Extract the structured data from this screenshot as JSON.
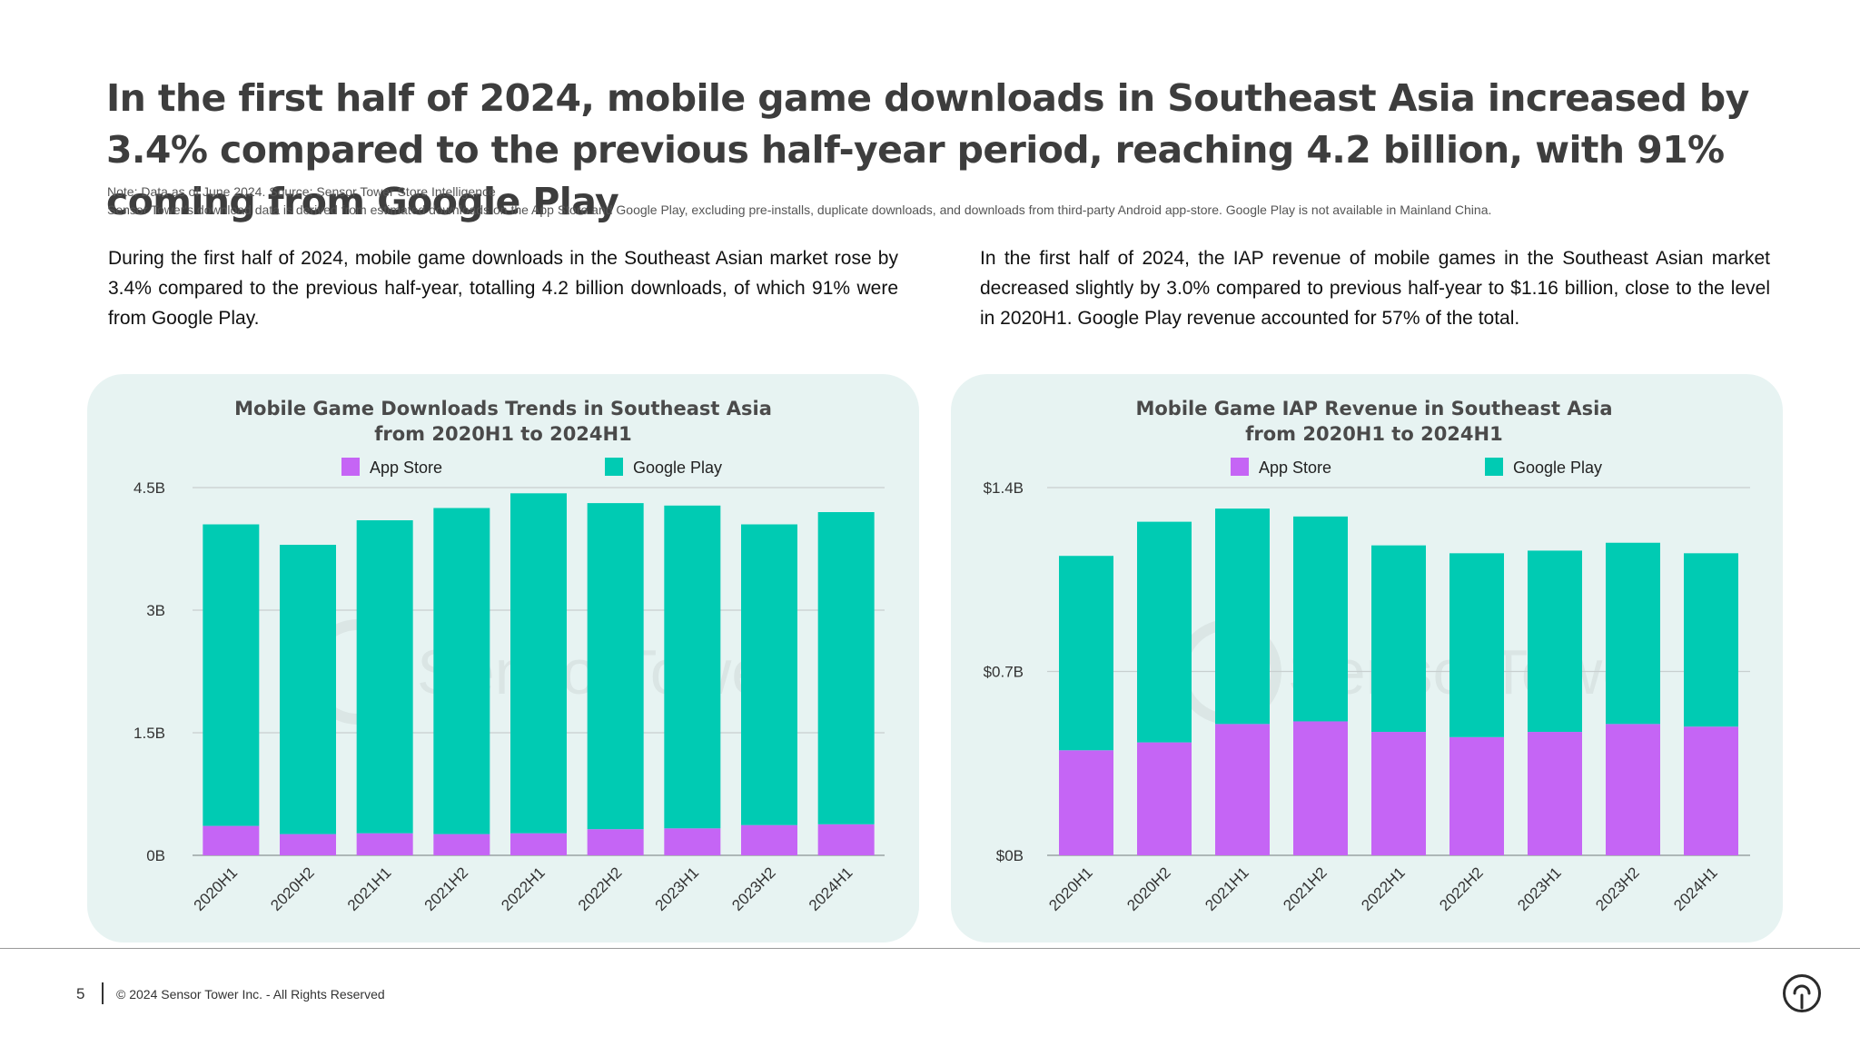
{
  "headline": "In the first half of 2024, mobile game downloads in Southeast Asia increased by 3.4% compared to the previous half-year period, reaching 4.2 billion, with 91% coming from Google Play",
  "note_line1": "Note: Data as of June 2024. Source: Sensor Tower Store Intelligence",
  "note_line2": "Sensor Tower's download data is derived from estimated downloads on the App Store and Google Play, excluding pre-installs, duplicate downloads, and downloads from third-party Android app-store. Google Play is not available in Mainland China.",
  "paragraph_left": "During the first half of 2024, mobile game downloads in the Southeast Asian market rose by 3.4% compared to the previous half-year, totalling 4.2 billion downloads, of which 91% were from Google Play.",
  "paragraph_right": "In the first half of 2024, the IAP revenue of mobile games in the Southeast Asian market decreased slightly by 3.0% compared to previous half-year to $1.16 billion, close to the level in 2020H1. Google Play revenue accounted for 57% of the total.",
  "colors": {
    "app_store": "#c565f5",
    "google_play": "#00cbb3",
    "panel_bg": "#e7f3f2",
    "grid": "#c8cfcf"
  },
  "watermark": "SensorTower",
  "footer": {
    "page_number": "5",
    "copyright": "© 2024 Sensor Tower Inc. - All Rights Reserved"
  },
  "chart_data": [
    {
      "type": "bar",
      "stacked": true,
      "title_line1": "Mobile Game Downloads Trends in Southeast Asia",
      "title_line2": "from 2020H1 to 2024H1",
      "categories": [
        "2020H1",
        "2020H2",
        "2021H1",
        "2021H2",
        "2022H1",
        "2022H2",
        "2023H1",
        "2023H2",
        "2024H1"
      ],
      "series": [
        {
          "name": "App Store",
          "values": [
            0.36,
            0.26,
            0.27,
            0.26,
            0.27,
            0.32,
            0.33,
            0.37,
            0.38
          ]
        },
        {
          "name": "Google Play",
          "values": [
            3.69,
            3.54,
            3.83,
            3.99,
            4.16,
            3.99,
            3.95,
            3.68,
            3.82
          ]
        }
      ],
      "ylim": [
        0,
        4.5
      ],
      "yticks": [
        0,
        1.5,
        3,
        4.5
      ],
      "ytick_labels": [
        "0B",
        "1.5B",
        "3B",
        "4.5B"
      ],
      "legend_position": "top"
    },
    {
      "type": "bar",
      "stacked": true,
      "title_line1": "Mobile Game IAP Revenue in Southeast Asia",
      "title_line2": "from 2020H1 to 2024H1",
      "categories": [
        "2020H1",
        "2020H2",
        "2021H1",
        "2021H2",
        "2022H1",
        "2022H2",
        "2023H1",
        "2023H2",
        "2024H1"
      ],
      "series": [
        {
          "name": "App Store",
          "values": [
            0.4,
            0.43,
            0.5,
            0.51,
            0.47,
            0.45,
            0.47,
            0.5,
            0.49
          ]
        },
        {
          "name": "Google Play",
          "values": [
            0.74,
            0.84,
            0.82,
            0.78,
            0.71,
            0.7,
            0.69,
            0.69,
            0.66
          ]
        }
      ],
      "ylim": [
        0,
        1.4
      ],
      "yticks": [
        0,
        0.7,
        1.4
      ],
      "ytick_labels": [
        "$0B",
        "$0.7B",
        "$1.4B"
      ],
      "legend_position": "top"
    }
  ]
}
